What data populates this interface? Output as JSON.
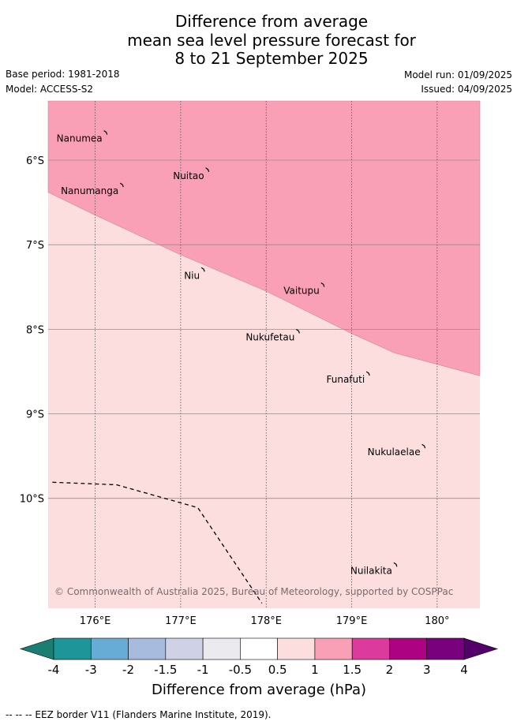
{
  "header": {
    "title_lines": [
      "Difference from average",
      "mean sea level pressure forecast for",
      "8 to 21 September 2025"
    ],
    "base_period": "Base period: 1981-2018",
    "model": "Model: ACCESS-S2",
    "model_run": "Model run: 01/09/2025",
    "issued": "Issued: 04/09/2025"
  },
  "map": {
    "lon_range": [
      175.45,
      180.5
    ],
    "lat_range": [
      -11.3,
      -5.3
    ],
    "lat_ticks": [
      {
        "value": -6,
        "label": "6°S"
      },
      {
        "value": -7,
        "label": "7°S"
      },
      {
        "value": -8,
        "label": "8°S"
      },
      {
        "value": -9,
        "label": "9°S"
      },
      {
        "value": -10,
        "label": "10°S"
      }
    ],
    "lon_ticks": [
      {
        "value": 176,
        "label": "176°E"
      },
      {
        "value": 177,
        "label": "177°E"
      },
      {
        "value": 178,
        "label": "178°E"
      },
      {
        "value": 179,
        "label": "179°E"
      },
      {
        "value": 180,
        "label": "180°"
      }
    ],
    "regions": [
      {
        "category": "0.5 to 1",
        "color": "#fddede"
      },
      {
        "category": "1 to 1.5",
        "color": "#f99fb6",
        "boundary": [
          [
            175.45,
            -6.38
          ],
          [
            176.0,
            -6.65
          ],
          [
            177.0,
            -7.12
          ],
          [
            178.0,
            -7.55
          ],
          [
            179.0,
            -8.05
          ],
          [
            179.5,
            -8.28
          ],
          [
            180.5,
            -8.55
          ]
        ]
      }
    ],
    "eez_border": [
      [
        175.5,
        -9.81
      ],
      [
        176.25,
        -9.84
      ],
      [
        177.2,
        -10.11
      ],
      [
        177.95,
        -11.24
      ]
    ],
    "places": [
      {
        "name": "Nanumea",
        "lon": 176.13,
        "lat": -5.67
      },
      {
        "name": "Nuitao",
        "lon": 177.32,
        "lat": -6.11
      },
      {
        "name": "Nanumanga",
        "lon": 176.32,
        "lat": -6.29
      },
      {
        "name": "Niu",
        "lon": 177.27,
        "lat": -7.29
      },
      {
        "name": "Vaitupu",
        "lon": 178.67,
        "lat": -7.47
      },
      {
        "name": "Nukufetau",
        "lon": 178.38,
        "lat": -8.02
      },
      {
        "name": "Funafuti",
        "lon": 179.2,
        "lat": -8.52
      },
      {
        "name": "Nukulaelae",
        "lon": 179.85,
        "lat": -9.38
      },
      {
        "name": "Nuilakita",
        "lon": 179.52,
        "lat": -10.78
      }
    ],
    "copyright": "© Commonwealth of Australia 2025, Bureau of Meteorology, supported by COSPPac"
  },
  "colorbar": {
    "label": "Difference from average (hPa)",
    "tick_labels": [
      "-4",
      "-3",
      "-2",
      "-1.5",
      "-1",
      "-0.5",
      "0.5",
      "1",
      "1.5",
      "2",
      "3",
      "4"
    ],
    "under_color": "#1a7f72",
    "over_color": "#54006a",
    "colors": [
      "#1e9598",
      "#67acd4",
      "#a6bbdd",
      "#cfd1e7",
      "#ebeaee",
      "#ffffff",
      "#fddede",
      "#f99fb6",
      "#dd3a9d",
      "#ad0383",
      "#7a017d"
    ]
  },
  "footnote": "--  --  -- EEZ border V11 (Flanders Marine Institute, 2019)."
}
